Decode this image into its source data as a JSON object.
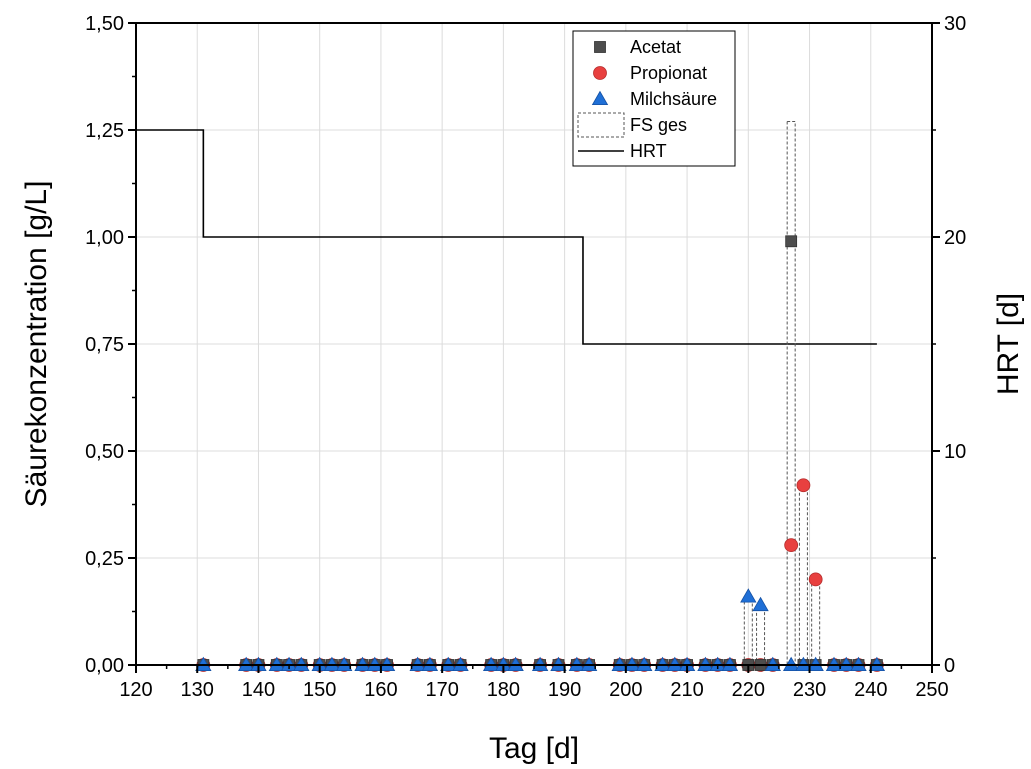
{
  "chart_data": {
    "type": "scatter",
    "xlabel": "Tag [d]",
    "ylabel": "Säurekonzentration [g/L]",
    "y2label": "HRT [d]",
    "xlim": [
      120,
      250
    ],
    "ylim": [
      0,
      1.5
    ],
    "y2lim": [
      0,
      30
    ],
    "x_ticks": [
      120,
      130,
      140,
      150,
      160,
      170,
      180,
      190,
      200,
      210,
      220,
      230,
      240,
      250
    ],
    "y_ticks": [
      0,
      0.25,
      0.5,
      0.75,
      1.0,
      1.25,
      1.5
    ],
    "y_tick_labels": [
      "0,00",
      "0,25",
      "0,50",
      "0,75",
      "1,00",
      "1,25",
      "1,50"
    ],
    "y2_ticks": [
      0,
      10,
      20,
      30
    ],
    "grid": true,
    "legend_position": "top-right",
    "colors": {
      "acetat": "#4d4d4d",
      "propionat": "#e8403f",
      "milchsaeure": "#1f6fd6",
      "fs": "#555555",
      "hrt": "#000000",
      "grid": "#dcdcdc"
    },
    "series": [
      {
        "name": "Acetat",
        "marker": "square",
        "x": [
          131,
          138,
          140,
          143,
          145,
          147,
          150,
          152,
          154,
          157,
          159,
          161,
          166,
          168,
          171,
          173,
          178,
          180,
          182,
          186,
          189,
          192,
          194,
          199,
          201,
          203,
          206,
          208,
          210,
          213,
          215,
          217,
          220,
          222,
          224,
          227,
          229,
          231,
          234,
          236,
          238,
          241
        ],
        "y": [
          0,
          0,
          0,
          0,
          0,
          0,
          0,
          0,
          0,
          0,
          0,
          0,
          0,
          0,
          0,
          0,
          0,
          0,
          0,
          0,
          0,
          0,
          0,
          0,
          0,
          0,
          0,
          0,
          0,
          0,
          0,
          0,
          0,
          0,
          0,
          0.99,
          0,
          0,
          0,
          0,
          0,
          0
        ]
      },
      {
        "name": "Propionat",
        "marker": "circle",
        "x": [
          131,
          138,
          140,
          143,
          145,
          147,
          150,
          152,
          154,
          157,
          159,
          161,
          166,
          168,
          171,
          173,
          178,
          180,
          182,
          186,
          189,
          192,
          194,
          199,
          201,
          203,
          206,
          208,
          210,
          213,
          215,
          217,
          220,
          222,
          224,
          227,
          229,
          231,
          234,
          236,
          238,
          241
        ],
        "y": [
          0,
          0,
          0,
          0,
          0,
          0,
          0,
          0,
          0,
          0,
          0,
          0,
          0,
          0,
          0,
          0,
          0,
          0,
          0,
          0,
          0,
          0,
          0,
          0,
          0,
          0,
          0,
          0,
          0,
          0,
          0,
          0,
          0,
          0,
          0,
          0.28,
          0.42,
          0.2,
          0,
          0,
          0,
          0
        ]
      },
      {
        "name": "Milchsäure",
        "marker": "triangle",
        "x": [
          131,
          138,
          140,
          143,
          145,
          147,
          150,
          152,
          154,
          157,
          159,
          161,
          166,
          168,
          171,
          173,
          178,
          180,
          182,
          186,
          189,
          192,
          194,
          199,
          201,
          203,
          206,
          208,
          210,
          213,
          215,
          217,
          220,
          222,
          224,
          227,
          229,
          231,
          234,
          236,
          238,
          241
        ],
        "y": [
          0,
          0,
          0,
          0,
          0,
          0,
          0,
          0,
          0,
          0,
          0,
          0,
          0,
          0,
          0,
          0,
          0,
          0,
          0,
          0,
          0,
          0,
          0,
          0,
          0,
          0,
          0,
          0,
          0,
          0,
          0,
          0,
          0.16,
          0.14,
          0,
          0,
          0,
          0,
          0,
          0,
          0,
          0
        ]
      },
      {
        "name": "FS ges",
        "marker": "dashed-bar",
        "x": [
          220,
          222,
          227,
          229,
          231
        ],
        "y": [
          0.16,
          0.14,
          1.27,
          0.42,
          0.2
        ]
      },
      {
        "name": "HRT",
        "marker": "step-line",
        "axis": "right",
        "x": [
          120,
          131,
          131,
          193,
          193,
          241
        ],
        "y": [
          25,
          25,
          20,
          20,
          15,
          15
        ]
      }
    ]
  }
}
